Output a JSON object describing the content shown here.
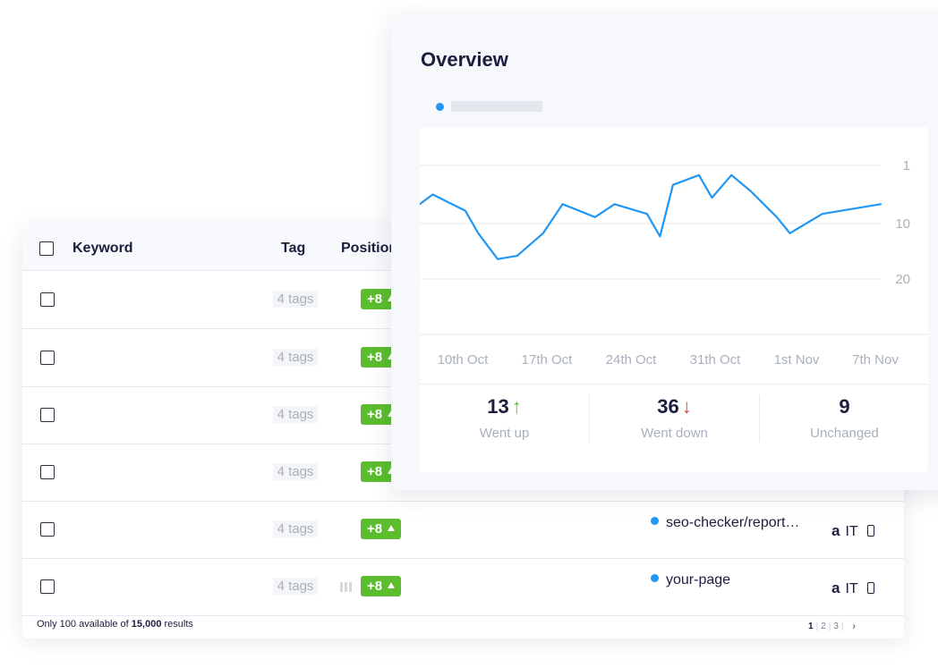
{
  "table": {
    "headers": {
      "keyword": "Keyword",
      "tag": "Tag",
      "position": "Position"
    },
    "rows": [
      {
        "tags": "4 tags",
        "change": "+8",
        "url": "",
        "engine": "",
        "country": ""
      },
      {
        "tags": "4 tags",
        "change": "+8",
        "url": "",
        "engine": "",
        "country": ""
      },
      {
        "tags": "4 tags",
        "change": "+8",
        "url": "",
        "engine": "",
        "country": ""
      },
      {
        "tags": "4 tags",
        "change": "+8",
        "url": "",
        "engine": "",
        "country": ""
      },
      {
        "tags": "4 tags",
        "change": "+8",
        "url": "seo-checker/report…",
        "engine": "a",
        "country": "IT"
      },
      {
        "tags": "4 tags",
        "change": "+8",
        "url": "your-page",
        "engine": "a",
        "country": "IT"
      }
    ],
    "footer": {
      "prefix": "Only 100 available of ",
      "count": "15,000",
      "suffix": " results"
    },
    "pager": {
      "pages": [
        "1",
        "2",
        "3"
      ],
      "current": "1",
      "next": "›"
    }
  },
  "overview": {
    "title": "Overview",
    "stats": [
      {
        "value": "13",
        "arrow": "↑",
        "label": "Went up"
      },
      {
        "value": "36",
        "arrow": "↓",
        "label": "Went down"
      },
      {
        "value": "9",
        "arrow": "",
        "label": "Unchanged"
      }
    ]
  },
  "colors": {
    "accent": "#2196f3",
    "positive": "#5cbd2e",
    "negative": "#e53935"
  },
  "chart_data": {
    "type": "line",
    "title": "",
    "xlabel": "",
    "ylabel": "",
    "x_tick_labels": [
      "10th Oct",
      "17th Oct",
      "24th Oct",
      "31th Oct",
      "1st Nov",
      "7th Nov"
    ],
    "y_ticks": [
      1,
      10,
      20
    ],
    "y_inverted": true,
    "ylim": [
      1,
      20
    ],
    "grid": true,
    "series": [
      {
        "color": "#2196f3",
        "x": [
          0,
          1,
          3.5,
          4.5,
          6,
          7.5,
          9.5,
          11,
          13.5,
          15,
          17.5,
          18.5,
          19.5,
          21.5,
          22.5,
          24,
          25.5,
          27.5,
          28.5,
          31,
          35.5
        ],
        "values": [
          7,
          5.5,
          8,
          11.5,
          15.5,
          15,
          11.5,
          7,
          9,
          7,
          8.5,
          12,
          4,
          2.5,
          6,
          2.5,
          5,
          9,
          11.5,
          8.5,
          7
        ]
      }
    ]
  }
}
